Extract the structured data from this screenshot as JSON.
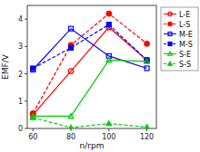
{
  "chart_data": {
    "type": "line",
    "x": [
      60,
      80,
      100,
      120
    ],
    "series": [
      {
        "name": "L-E",
        "color": "#ff0000",
        "marker": "circle-open",
        "line_style": "solid",
        "values": [
          0.5,
          2.1,
          3.7,
          2.5
        ]
      },
      {
        "name": "L-S",
        "color": "#ff0000",
        "marker": "circle",
        "line_style": "dashed",
        "values": [
          0.55,
          3.05,
          4.2,
          3.1
        ]
      },
      {
        "name": "M-E",
        "color": "#0000ff",
        "marker": "square-open",
        "line_style": "solid",
        "values": [
          2.15,
          3.65,
          2.65,
          2.2
        ]
      },
      {
        "name": "M-S",
        "color": "#0000ff",
        "marker": "square",
        "line_style": "dashed",
        "values": [
          2.2,
          2.95,
          3.8,
          2.5
        ]
      },
      {
        "name": "S-E",
        "color": "#00cc00",
        "marker": "triangle-open",
        "line_style": "solid",
        "values": [
          0.45,
          0.45,
          2.5,
          2.45
        ]
      },
      {
        "name": "S-S",
        "color": "#00cc00",
        "marker": "triangle",
        "line_style": "dashed",
        "values": [
          0.4,
          0.03,
          0.18,
          0.05
        ]
      }
    ],
    "xlabel": "n/rpm",
    "ylabel": "EMF/V",
    "xlim": [
      57,
      125
    ],
    "ylim": [
      0,
      4.5
    ],
    "xticks": [
      60,
      80,
      100,
      120
    ],
    "yticks": [
      0,
      1,
      2,
      3,
      4
    ],
    "legend": "right"
  }
}
